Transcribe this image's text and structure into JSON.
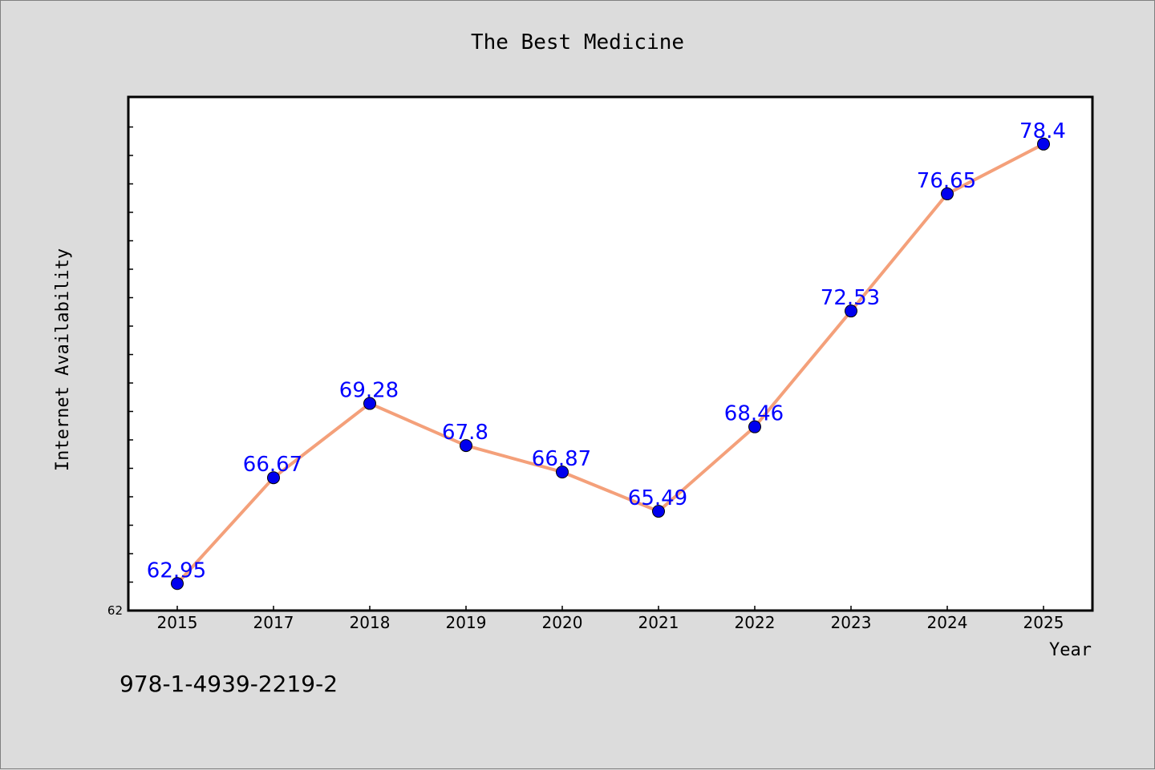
{
  "chart_data": {
    "type": "line",
    "title": "The Best Medicine",
    "xlabel": "Year",
    "ylabel": "Internet Availability",
    "categories": [
      "2015",
      "2017",
      "2018",
      "2019",
      "2020",
      "2021",
      "2022",
      "2023",
      "2024",
      "2025"
    ],
    "series": [
      {
        "values": [
          62.95,
          66.67,
          69.28,
          67.8,
          66.87,
          65.49,
          68.46,
          72.53,
          76.65,
          78.4
        ],
        "data_labels": [
          "62.95",
          "66.67",
          "69.28",
          "67.8",
          "66.87",
          "65.49",
          "68.46",
          "72.53",
          "76.65",
          "78.4"
        ],
        "line_color": "#f4a07a",
        "marker_color": "#0000ee",
        "label_color": "#0000ff"
      }
    ],
    "y_tick_labels": [
      "62"
    ],
    "ylim": [
      62,
      80
    ],
    "grid": false,
    "legend": "none",
    "plot_background": "#ffffff",
    "figure_background": "#dcdcdc"
  },
  "footer": {
    "isbn": "978-1-4939-2219-2"
  }
}
